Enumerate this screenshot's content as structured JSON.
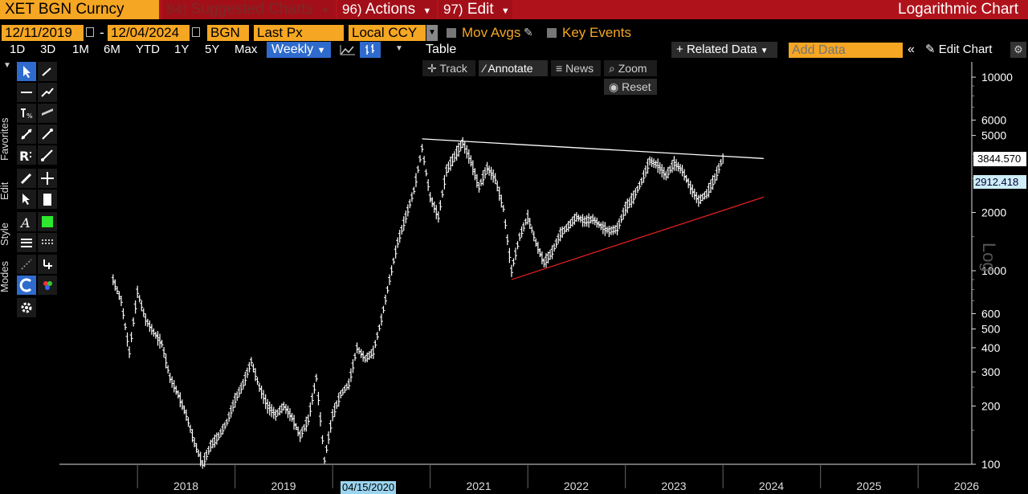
{
  "header": {
    "ticker": "XET BGN Curncy",
    "suggested": {
      "num": "94)",
      "label": "Suggested Charts"
    },
    "actions": {
      "num": "96)",
      "label": "Actions"
    },
    "edit": {
      "num": "97)",
      "label": "Edit"
    },
    "chart_name": "Logarithmic Chart"
  },
  "params": {
    "start_date": "12/11/2019",
    "end_date": "12/04/2024",
    "source": "BGN",
    "field": "Last Px",
    "currency": "Local CCY",
    "mov_avgs": "Mov Avgs",
    "key_events": "Key Events"
  },
  "periods": [
    "1D",
    "3D",
    "1M",
    "6M",
    "YTD",
    "1Y",
    "5Y",
    "Max"
  ],
  "frequency": "Weekly",
  "table_label": "Table",
  "related_data": "Related Data",
  "add_data_placeholder": "Add Data",
  "edit_chart": "Edit Chart",
  "toolbar": {
    "track": "Track",
    "annotate": "Annotate",
    "news": "News",
    "zoom": "Zoom",
    "reset": "Reset"
  },
  "side_tabs": {
    "favorites": "Favorites",
    "edit": "Edit",
    "style": "Style",
    "modes": "Modes"
  },
  "colors": {
    "bar": "#ffffff",
    "top_trendline": "#ffffff",
    "bottom_trendline": "#e02020",
    "accent": "#f5a623",
    "header": "#b0121b"
  },
  "chart_data": {
    "type": "bar",
    "scale": "log",
    "ylim": [
      100,
      12000
    ],
    "y_ticks": [
      100,
      200,
      300,
      400,
      500,
      600,
      1000,
      2000,
      5000,
      6000,
      10000
    ],
    "y_scale_label": "Log",
    "x_ticks": [
      "2018",
      "2019",
      "2021",
      "2022",
      "2023",
      "2024",
      "2025",
      "2026"
    ],
    "cursor_date": "04/15/2020",
    "last_price": "3844.570",
    "trendline_value": "2912.418",
    "series": [
      {
        "values": [
          {
            "x": "2017-10",
            "y": 900
          },
          {
            "x": "2017-11",
            "y": 700
          },
          {
            "x": "2017-12",
            "y": 380
          },
          {
            "x": "2018-01",
            "y": 780
          },
          {
            "x": "2018-02",
            "y": 560
          },
          {
            "x": "2018-03",
            "y": 480
          },
          {
            "x": "2018-04",
            "y": 420
          },
          {
            "x": "2018-05",
            "y": 280
          },
          {
            "x": "2018-06",
            "y": 230
          },
          {
            "x": "2018-07",
            "y": 180
          },
          {
            "x": "2018-08",
            "y": 130
          },
          {
            "x": "2018-09",
            "y": 100
          },
          {
            "x": "2018-10",
            "y": 125
          },
          {
            "x": "2018-11",
            "y": 140
          },
          {
            "x": "2018-12",
            "y": 165
          },
          {
            "x": "2019-01",
            "y": 215
          },
          {
            "x": "2019-02",
            "y": 260
          },
          {
            "x": "2019-03",
            "y": 340
          },
          {
            "x": "2019-04",
            "y": 250
          },
          {
            "x": "2019-05",
            "y": 200
          },
          {
            "x": "2019-06",
            "y": 180
          },
          {
            "x": "2019-07",
            "y": 200
          },
          {
            "x": "2019-08",
            "y": 175
          },
          {
            "x": "2019-09",
            "y": 140
          },
          {
            "x": "2019-10",
            "y": 170
          },
          {
            "x": "2019-11",
            "y": 280
          },
          {
            "x": "2019-12",
            "y": 105
          },
          {
            "x": "2020-01",
            "y": 180
          },
          {
            "x": "2020-02",
            "y": 230
          },
          {
            "x": "2020-03",
            "y": 260
          },
          {
            "x": "2020-04",
            "y": 400
          },
          {
            "x": "2020-05",
            "y": 350
          },
          {
            "x": "2020-06",
            "y": 380
          },
          {
            "x": "2020-07",
            "y": 560
          },
          {
            "x": "2020-08",
            "y": 900
          },
          {
            "x": "2020-09",
            "y": 1400
          },
          {
            "x": "2020-10",
            "y": 1900
          },
          {
            "x": "2020-11",
            "y": 2600
          },
          {
            "x": "2020-12",
            "y": 4300
          },
          {
            "x": "2021-01",
            "y": 2400
          },
          {
            "x": "2021-02",
            "y": 1900
          },
          {
            "x": "2021-03",
            "y": 3300
          },
          {
            "x": "2021-04",
            "y": 3900
          },
          {
            "x": "2021-05",
            "y": 4600
          },
          {
            "x": "2021-06",
            "y": 3700
          },
          {
            "x": "2021-07",
            "y": 2700
          },
          {
            "x": "2021-08",
            "y": 3400
          },
          {
            "x": "2021-09",
            "y": 3000
          },
          {
            "x": "2021-10",
            "y": 2100
          },
          {
            "x": "2021-11",
            "y": 1000
          },
          {
            "x": "2021-12",
            "y": 1500
          },
          {
            "x": "2022-01",
            "y": 1900
          },
          {
            "x": "2022-02",
            "y": 1400
          },
          {
            "x": "2022-03",
            "y": 1100
          },
          {
            "x": "2022-04",
            "y": 1250
          },
          {
            "x": "2022-05",
            "y": 1550
          },
          {
            "x": "2022-06",
            "y": 1700
          },
          {
            "x": "2022-07",
            "y": 1900
          },
          {
            "x": "2022-08",
            "y": 1800
          },
          {
            "x": "2022-09",
            "y": 1850
          },
          {
            "x": "2022-10",
            "y": 1700
          },
          {
            "x": "2022-11",
            "y": 1600
          },
          {
            "x": "2022-12",
            "y": 1650
          },
          {
            "x": "2023-01",
            "y": 2100
          },
          {
            "x": "2023-02",
            "y": 2400
          },
          {
            "x": "2023-03",
            "y": 2900
          },
          {
            "x": "2023-04",
            "y": 3700
          },
          {
            "x": "2023-05",
            "y": 3500
          },
          {
            "x": "2023-06",
            "y": 3100
          },
          {
            "x": "2023-07",
            "y": 3600
          },
          {
            "x": "2023-08",
            "y": 3300
          },
          {
            "x": "2023-09",
            "y": 2700
          },
          {
            "x": "2023-10",
            "y": 2300
          },
          {
            "x": "2023-11",
            "y": 2500
          },
          {
            "x": "2023-12",
            "y": 3000
          },
          {
            "x": "2024-01",
            "y": 3844
          }
        ]
      }
    ],
    "trendlines": [
      {
        "name": "resistance",
        "from": {
          "x": "2020-12",
          "y": 4800
        },
        "to": {
          "x": "2024-06",
          "y": 3800
        }
      },
      {
        "name": "support",
        "from": {
          "x": "2021-11",
          "y": 900
        },
        "to": {
          "x": "2024-06",
          "y": 2400
        }
      }
    ]
  }
}
